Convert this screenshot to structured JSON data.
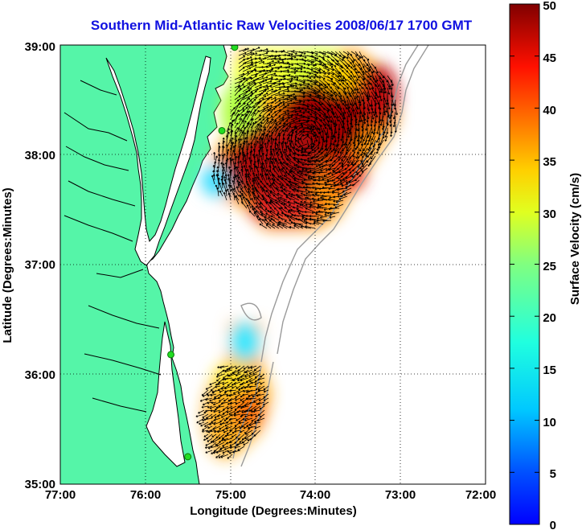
{
  "title": "Southern Mid-Atlantic Raw Velocities 2008/06/17 1700 GMT",
  "axes": {
    "xlabel": "Longitude (Degrees:Minutes)",
    "ylabel": "Latitude (Degrees:Minutes)",
    "x_ticks": [
      "77:00",
      "76:00",
      "75:00",
      "74:00",
      "73:00",
      "72:00"
    ],
    "y_ticks": [
      "39:00",
      "38:00",
      "37:00",
      "36:00",
      "35:00"
    ],
    "lon_range": [
      -77,
      -72
    ],
    "lat_range": [
      35,
      39
    ],
    "grid": "dotted"
  },
  "colorbar": {
    "label": "Surface Velocity (cm/s)",
    "ticks": [
      "50",
      "45",
      "40",
      "35",
      "30",
      "25",
      "20",
      "15",
      "10",
      "5",
      "0"
    ],
    "range": [
      0,
      50
    ],
    "colormap": "jet"
  },
  "colors": {
    "land": "#55f5a8",
    "coast": "#000000",
    "bathymetry": "#9a9a9a",
    "station": "#22dd22",
    "title": "#1010e0",
    "arrows": "#000000"
  },
  "chart_data": {
    "type": "heatmap",
    "title": "Southern Mid-Atlantic Raw Velocities 2008/06/17 1700 GMT",
    "xlabel": "Longitude (Degrees:Minutes)",
    "ylabel": "Latitude (Degrees:Minutes)",
    "xlim": [
      -77,
      -72
    ],
    "ylim": [
      35,
      39
    ],
    "value_label": "Surface Velocity (cm/s)",
    "value_range": [
      0,
      50
    ],
    "stations": [
      {
        "lon": -74.95,
        "lat": 38.98
      },
      {
        "lon": -75.1,
        "lat": 38.22
      },
      {
        "lon": -75.7,
        "lat": 36.18
      },
      {
        "lon": -75.5,
        "lat": 35.25
      }
    ],
    "velocity_regions": [
      {
        "lon": -74.7,
        "lat": 38.45,
        "speed": 24
      },
      {
        "lon": -74.25,
        "lat": 38.7,
        "speed": 22
      },
      {
        "lon": -73.55,
        "lat": 38.72,
        "speed": 30
      },
      {
        "lon": -73.35,
        "lat": 38.45,
        "speed": 44
      },
      {
        "lon": -73.75,
        "lat": 38.3,
        "speed": 46
      },
      {
        "lon": -74.15,
        "lat": 38.15,
        "speed": 49
      },
      {
        "lon": -74.55,
        "lat": 37.95,
        "speed": 47
      },
      {
        "lon": -74.0,
        "lat": 37.8,
        "speed": 45
      },
      {
        "lon": -74.45,
        "lat": 37.6,
        "speed": 42
      },
      {
        "lon": -73.9,
        "lat": 37.55,
        "speed": 38
      },
      {
        "lon": -74.85,
        "lat": 38.2,
        "speed": 20
      },
      {
        "lon": -75.1,
        "lat": 37.8,
        "speed": 12
      },
      {
        "lon": -75.25,
        "lat": 37.7,
        "speed": 10
      },
      {
        "lon": -74.8,
        "lat": 36.25,
        "speed": 9
      },
      {
        "lon": -74.95,
        "lat": 36.05,
        "speed": 24
      },
      {
        "lon": -75.1,
        "lat": 35.85,
        "speed": 31
      },
      {
        "lon": -74.9,
        "lat": 35.75,
        "speed": 35
      },
      {
        "lon": -74.75,
        "lat": 35.9,
        "speed": 30
      },
      {
        "lon": -75.0,
        "lat": 35.55,
        "speed": 28
      },
      {
        "lon": -74.85,
        "lat": 35.5,
        "speed": 34
      }
    ]
  }
}
